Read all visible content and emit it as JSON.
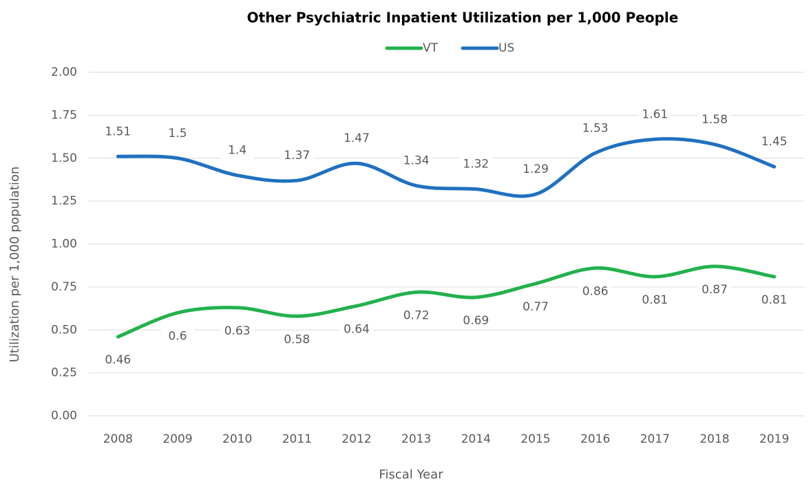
{
  "chart_data": {
    "type": "line",
    "title": "Other Psychiatric Inpatient Utilization per 1,000 People",
    "x_label": "Fiscal Year",
    "y_label": "Utilization per 1,000 population",
    "categories": [
      "2008",
      "2009",
      "2010",
      "2011",
      "2012",
      "2013",
      "2014",
      "2015",
      "2016",
      "2017",
      "2018",
      "2019"
    ],
    "series": [
      {
        "name": "VT",
        "color": "#22b14c",
        "values": [
          0.46,
          0.6,
          0.63,
          0.58,
          0.64,
          0.72,
          0.69,
          0.77,
          0.86,
          0.81,
          0.87,
          0.81
        ]
      },
      {
        "name": "US",
        "color": "#2070c0",
        "values": [
          1.51,
          1.5,
          1.4,
          1.37,
          1.47,
          1.34,
          1.32,
          1.29,
          1.53,
          1.61,
          1.58,
          1.45
        ]
      }
    ],
    "ylim": [
      0,
      2
    ],
    "yticks": [
      {
        "value": 0,
        "label": "0.00"
      },
      {
        "value": 0.25,
        "label": "0.25"
      },
      {
        "value": 0.5,
        "label": "0.50"
      },
      {
        "value": 0.75,
        "label": "0.75"
      },
      {
        "value": 1,
        "label": "1.00"
      },
      {
        "value": 1.25,
        "label": "1.25"
      },
      {
        "value": 1.5,
        "label": "1.50"
      },
      {
        "value": 1.75,
        "label": "1.75"
      },
      {
        "value": 2,
        "label": "2.00"
      }
    ],
    "grid": true,
    "smooth": true,
    "legend": "top"
  }
}
